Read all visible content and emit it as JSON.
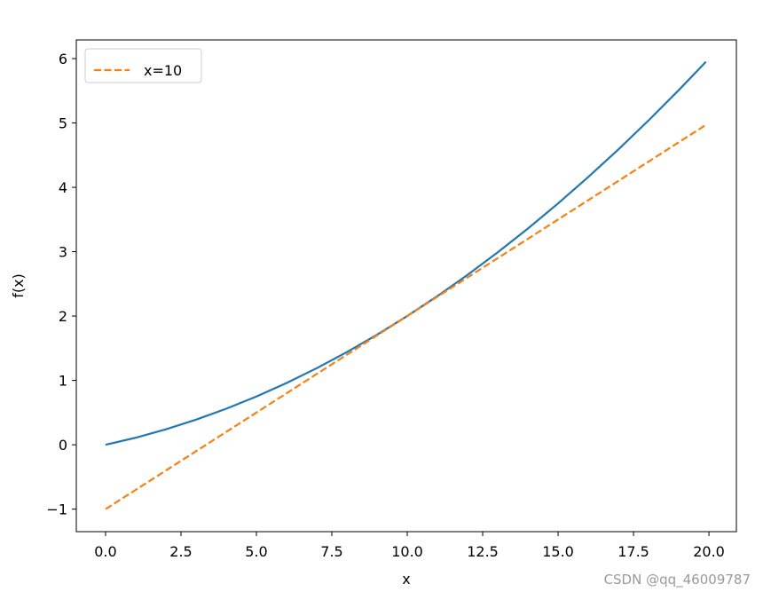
{
  "chart_data": {
    "type": "line",
    "x": [
      0,
      1,
      2,
      3,
      4,
      5,
      6,
      7,
      8,
      9,
      10,
      11,
      12,
      13,
      14,
      15,
      16,
      17,
      18,
      19,
      19.9
    ],
    "series": [
      {
        "color": "#1f77b4",
        "dash": false,
        "values": [
          0,
          0.11,
          0.24,
          0.39,
          0.56,
          0.75,
          0.96,
          1.19,
          1.44,
          1.71,
          2.0,
          2.31,
          2.64,
          2.99,
          3.36,
          3.75,
          4.16,
          4.59,
          5.04,
          5.51,
          5.95
        ]
      },
      {
        "name": "x=10",
        "color": "#ff7f0e",
        "dash": true,
        "values": [
          -1,
          -0.7,
          -0.4,
          -0.1,
          0.2,
          0.5,
          0.8,
          1.1,
          1.4,
          1.7,
          2.0,
          2.3,
          2.6,
          2.9,
          3.2,
          3.5,
          3.8,
          4.1,
          4.4,
          4.7,
          4.97
        ]
      }
    ],
    "x_label": "x",
    "y_label": "f(x)",
    "xlim": [
      -0.97,
      20.91
    ],
    "ylim": [
      -1.35,
      6.29
    ],
    "xticks": [
      {
        "value": 0,
        "label": "0.0"
      },
      2.5,
      {
        "value": 5,
        "label": "5.0"
      },
      7.5,
      {
        "value": 10,
        "label": "10.0"
      },
      12.5,
      {
        "value": 15,
        "label": "15.0"
      },
      17.5,
      {
        "value": 20,
        "label": "20.0"
      }
    ],
    "yticks": [
      {
        "value": -1,
        "label": "−1"
      },
      0,
      1,
      2,
      3,
      4,
      5,
      6
    ],
    "legend": "upper left",
    "watermark": "CSDN @qq_46009787"
  }
}
